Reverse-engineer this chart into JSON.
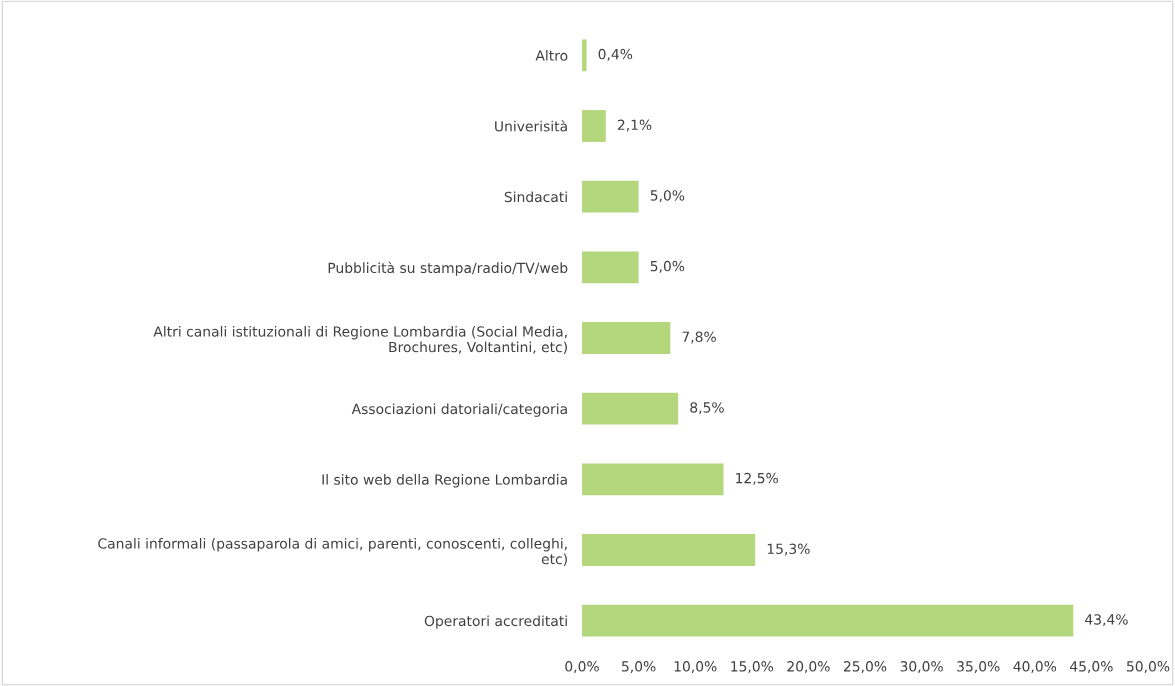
{
  "chart_data": {
    "type": "bar",
    "orientation": "horizontal",
    "categories": [
      "Altro",
      "Univerisità",
      "Sindacati",
      "Pubblicità su stampa/radio/TV/web",
      "Altri canali istituzionali di Regione Lombardia (Social Media,\nBrochures, Voltantini, etc)",
      "Associazioni datoriali/categoria",
      "Il sito web della Regione Lombardia",
      "Canali informali (passaparola di amici, parenti, conoscenti, colleghi,\netc)",
      "Operatori accreditati"
    ],
    "values": [
      0.4,
      2.1,
      5.0,
      5.0,
      7.8,
      8.5,
      12.5,
      15.3,
      43.4
    ],
    "value_labels": [
      "0,4%",
      "2,1%",
      "5,0%",
      "5,0%",
      "7,8%",
      "8,5%",
      "12,5%",
      "15,3%",
      "43,4%"
    ],
    "color": "#b4d67c",
    "xlim": [
      0,
      50
    ],
    "xticks": [
      {
        "value": 0,
        "label": "0,0%"
      },
      {
        "value": 5,
        "label": "5,0%"
      },
      {
        "value": 10,
        "label": "10,0%"
      },
      {
        "value": 15,
        "label": "15,0%"
      },
      {
        "value": 20,
        "label": "20,0%"
      },
      {
        "value": 25,
        "label": "25,0%"
      },
      {
        "value": 30,
        "label": "30,0%"
      },
      {
        "value": 35,
        "label": "35,0%"
      },
      {
        "value": 40,
        "label": "40,0%"
      },
      {
        "value": 45,
        "label": "45,0%"
      },
      {
        "value": 50,
        "label": "50,0%"
      }
    ],
    "grid": false,
    "legend": false
  }
}
